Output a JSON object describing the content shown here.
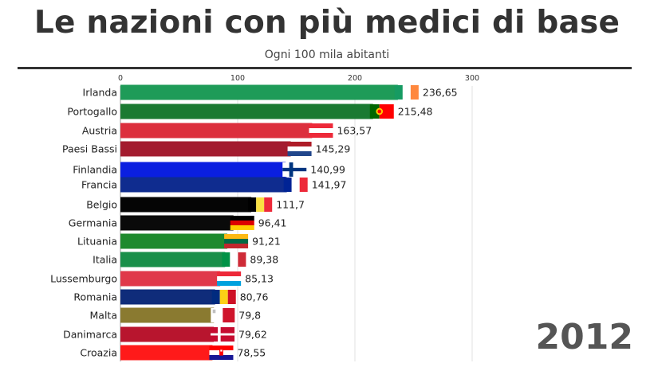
{
  "title": "Le nazioni con più medici di base",
  "subtitle": "Ogni 100 mila abitanti",
  "year": "2012",
  "chart_data": {
    "type": "bar",
    "orientation": "horizontal",
    "title": "Le nazioni con più medici di base",
    "subtitle": "Ogni 100 mila abitanti",
    "xlim": [
      0,
      300
    ],
    "xticks": [
      0,
      100,
      200,
      300
    ],
    "xtick_labels": [
      "0",
      "100",
      "200",
      "300"
    ],
    "grid": true,
    "categories": [
      "Irlanda",
      "Portogallo",
      "Austria",
      "Paesi Bassi",
      "Finlandia",
      "Francia",
      "Belgio",
      "Germania",
      "Lituania",
      "Italia",
      "Lussemburgo",
      "Romania",
      "Malta",
      "Danimarca",
      "Croazia"
    ],
    "values": [
      236.65,
      215.48,
      163.57,
      145.29,
      140.99,
      141.97,
      111.7,
      96.41,
      91.21,
      89.38,
      85.13,
      80.76,
      79.8,
      79.62,
      78.55
    ],
    "value_labels": [
      "236,65",
      "215,48",
      "163,57",
      "145,29",
      "140,99",
      "141,97",
      "111,7",
      "96,41",
      "91,21",
      "89,38",
      "85,13",
      "80,76",
      "79,8",
      "79,62",
      "78,55"
    ],
    "colors": [
      "#1e9b58",
      "#1a7a32",
      "#dc2f3d",
      "#a31c2f",
      "#0a1fe0",
      "#0f2c8f",
      "#050505",
      "#0a0a0a",
      "#1e8a2e",
      "#1a8f4a",
      "#e0384a",
      "#0f2c7a",
      "#8a7a30",
      "#b8152e",
      "#ff1a1a"
    ],
    "flags": [
      "ireland",
      "portugal",
      "austria",
      "netherlands",
      "finland",
      "france",
      "belgium",
      "germany",
      "lithuania",
      "italy",
      "luxembourg",
      "romania",
      "malta",
      "denmark",
      "croatia"
    ]
  }
}
